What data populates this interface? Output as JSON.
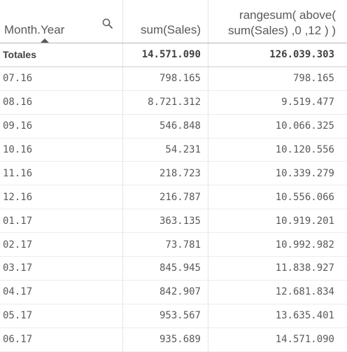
{
  "columns": {
    "dimension": "Month.Year",
    "measure1": "sum(Sales)",
    "measure2_line1": "rangesum( above(",
    "measure2_line2": "sum(Sales) ,0 ,12 ) )"
  },
  "totals": {
    "label": "Totales",
    "measure1": "14.571.090",
    "measure2": "126.039.303"
  },
  "rows": [
    {
      "month": "07.16",
      "sales": "798.165",
      "rangesum": "798.165"
    },
    {
      "month": "08.16",
      "sales": "8.721.312",
      "rangesum": "9.519.477"
    },
    {
      "month": "09.16",
      "sales": "546.848",
      "rangesum": "10.066.325"
    },
    {
      "month": "10.16",
      "sales": "54.231",
      "rangesum": "10.120.556"
    },
    {
      "month": "11.16",
      "sales": "218.723",
      "rangesum": "10.339.279"
    },
    {
      "month": "12.16",
      "sales": "216.787",
      "rangesum": "10.556.066"
    },
    {
      "month": "01.17",
      "sales": "363.135",
      "rangesum": "10.919.201"
    },
    {
      "month": "02.17",
      "sales": "73.781",
      "rangesum": "10.992.982"
    },
    {
      "month": "03.17",
      "sales": "845.945",
      "rangesum": "11.838.927"
    },
    {
      "month": "04.17",
      "sales": "842.907",
      "rangesum": "12.681.834"
    },
    {
      "month": "05.17",
      "sales": "953.567",
      "rangesum": "13.635.401"
    },
    {
      "month": "06.17",
      "sales": "935.689",
      "rangesum": "14.571.090"
    }
  ],
  "icons": {
    "search": "search-icon",
    "sort": "sort-ascending-icon"
  }
}
